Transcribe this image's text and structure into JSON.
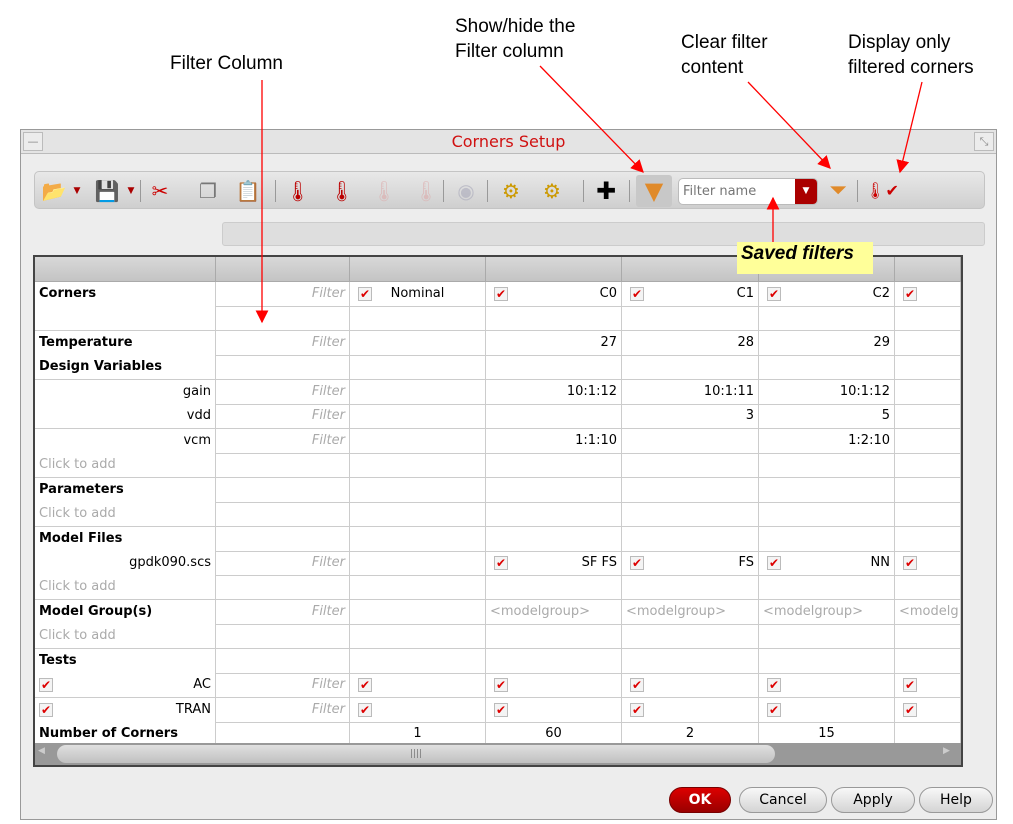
{
  "annotations": {
    "filter_column": "Filter Column",
    "show_hide": [
      "Show/hide the",
      "Filter column"
    ],
    "clear": [
      "Clear filter",
      "content"
    ],
    "display": [
      "Display only",
      "filtered corners"
    ],
    "saved_filters": "Saved filters"
  },
  "window": {
    "title": "Corners Setup"
  },
  "toolbar": {
    "filter_placeholder": "Filter name",
    "icons": [
      "open-csv-icon",
      "save-csv-icon",
      "cut-icon",
      "copy-icon",
      "paste-icon",
      "add-temperature-icon",
      "delete-temperature-icon",
      "move-right-icon",
      "move-left-icon",
      "disabled-icon",
      "settings-doc-icon",
      "settings-docs-icon",
      "move-cross-icon",
      "filter-icon",
      "clear-filter-icon",
      "show-filtered-icon"
    ]
  },
  "colors": {
    "accent": "#cc0000",
    "check": "#dd0000",
    "title": "#d01010"
  },
  "table": {
    "header": [
      "",
      "",
      "",
      "",
      "",
      "",
      ""
    ],
    "rows": [
      {
        "label": "Corners",
        "style": "b",
        "filter": "Filter",
        "cells": [
          {
            "check": true,
            "text": "Nominal",
            "align": "center"
          },
          {
            "check": true,
            "text": "C0"
          },
          {
            "check": true,
            "text": "C1"
          },
          {
            "check": true,
            "text": "C2"
          },
          {
            "check": true,
            "text": ""
          }
        ]
      },
      {
        "label": "",
        "style": "",
        "filter": "",
        "cells": [
          {},
          {},
          {},
          {},
          {}
        ]
      },
      {
        "label": "Temperature",
        "style": "b",
        "filter": "Filter",
        "cells": [
          {},
          {
            "text": "27"
          },
          {
            "text": "28"
          },
          {
            "text": "29"
          },
          {}
        ]
      },
      {
        "label": "Design Variables",
        "style": "b",
        "filter": "",
        "cells": [
          {},
          {},
          {},
          {},
          {}
        ]
      },
      {
        "label": "gain",
        "style": "r",
        "filter": "Filter",
        "cells": [
          {},
          {
            "text": "10:1:12"
          },
          {
            "text": "10:1:11"
          },
          {
            "text": "10:1:12"
          },
          {}
        ]
      },
      {
        "label": "vdd",
        "style": "r",
        "filter": "Filter",
        "cells": [
          {},
          {},
          {
            "text": "3"
          },
          {
            "text": "5"
          },
          {}
        ]
      },
      {
        "label": "vcm",
        "style": "r",
        "filter": "Filter",
        "cells": [
          {},
          {
            "text": "1:1:10"
          },
          {},
          {
            "text": "1:2:10"
          },
          {}
        ]
      },
      {
        "label": "Click to add",
        "style": "hint",
        "filter": "",
        "cells": [
          {},
          {},
          {},
          {},
          {}
        ]
      },
      {
        "label": "Parameters",
        "style": "b",
        "filter": "",
        "cells": [
          {},
          {},
          {},
          {},
          {}
        ]
      },
      {
        "label": "Click to add",
        "style": "hint",
        "filter": "",
        "cells": [
          {},
          {},
          {},
          {},
          {}
        ]
      },
      {
        "label": "Model Files",
        "style": "b",
        "filter": "",
        "cells": [
          {},
          {},
          {},
          {},
          {}
        ]
      },
      {
        "label": "gpdk090.scs",
        "style": "r",
        "filter": "Filter",
        "cells": [
          {},
          {
            "check": true,
            "text": "SF FS"
          },
          {
            "check": true,
            "text": "FS"
          },
          {
            "check": true,
            "text": "NN"
          },
          {
            "check": true,
            "text": ""
          }
        ]
      },
      {
        "label": "Click to add",
        "style": "hint",
        "filter": "",
        "cells": [
          {},
          {},
          {},
          {},
          {}
        ]
      },
      {
        "label": "Model Group(s)",
        "style": "b",
        "filter": "Filter",
        "cells": [
          {},
          {
            "text": "<modelgroup>",
            "mg": true
          },
          {
            "text": "<modelgroup>",
            "mg": true
          },
          {
            "text": "<modelgroup>",
            "mg": true
          },
          {
            "text": "<modelg",
            "mg": true
          }
        ]
      },
      {
        "label": "Click to add",
        "style": "hint",
        "filter": "",
        "cells": [
          {},
          {},
          {},
          {},
          {}
        ]
      },
      {
        "label": "Tests",
        "style": "b",
        "filter": "",
        "cells": [
          {},
          {},
          {},
          {},
          {}
        ]
      },
      {
        "label": "AC",
        "style": "r",
        "label_check": true,
        "filter": "Filter",
        "cells": [
          {
            "check": true
          },
          {
            "check": true
          },
          {
            "check": true
          },
          {
            "check": true
          },
          {
            "check": true
          }
        ]
      },
      {
        "label": "TRAN",
        "style": "r",
        "label_check": true,
        "filter": "Filter",
        "cells": [
          {
            "check": true
          },
          {
            "check": true
          },
          {
            "check": true
          },
          {
            "check": true
          },
          {
            "check": true
          }
        ]
      },
      {
        "label": "Number of Corners",
        "style": "b",
        "filter": "",
        "cells": [
          {
            "text": "1",
            "align": "center"
          },
          {
            "text": "60",
            "align": "center"
          },
          {
            "text": "2",
            "align": "center"
          },
          {
            "text": "15",
            "align": "center"
          },
          {}
        ]
      }
    ]
  },
  "buttons": {
    "ok": "OK",
    "cancel": "Cancel",
    "apply": "Apply",
    "help": "Help"
  }
}
